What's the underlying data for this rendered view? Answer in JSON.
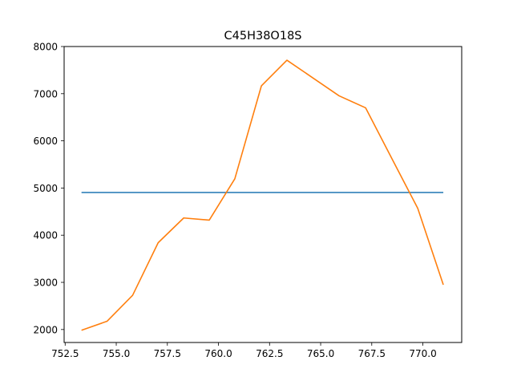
{
  "chart_data": {
    "type": "line",
    "title": "C45H38O18S",
    "xlabel": "",
    "ylabel": "",
    "xlim": [
      752.45,
      771.9
    ],
    "ylim": [
      1725,
      8000
    ],
    "x_ticks": [
      752.5,
      755.0,
      757.5,
      760.0,
      762.5,
      765.0,
      767.5,
      770.0
    ],
    "x_tick_labels": [
      "752.5",
      "755.0",
      "757.5",
      "760.0",
      "762.5",
      "765.0",
      "767.5",
      "770.0"
    ],
    "y_ticks": [
      2000,
      3000,
      4000,
      5000,
      6000,
      7000,
      8000
    ],
    "y_tick_labels": [
      "2000",
      "3000",
      "4000",
      "5000",
      "6000",
      "7000",
      "8000"
    ],
    "grid": false,
    "series": [
      {
        "color": "#1f77b4",
        "x": [
          753.3,
          771.0
        ],
        "y": [
          4905,
          4905
        ]
      },
      {
        "color": "#ff7f0e",
        "x": [
          753.3,
          754.55,
          755.8,
          757.05,
          758.3,
          759.55,
          760.8,
          762.1,
          763.35,
          764.6,
          765.9,
          767.2,
          768.5,
          769.75,
          771.0
        ],
        "y": [
          1985,
          2175,
          2725,
          3840,
          4365,
          4320,
          5195,
          7165,
          7710,
          7340,
          6955,
          6700,
          5610,
          4570,
          2950
        ]
      }
    ]
  }
}
